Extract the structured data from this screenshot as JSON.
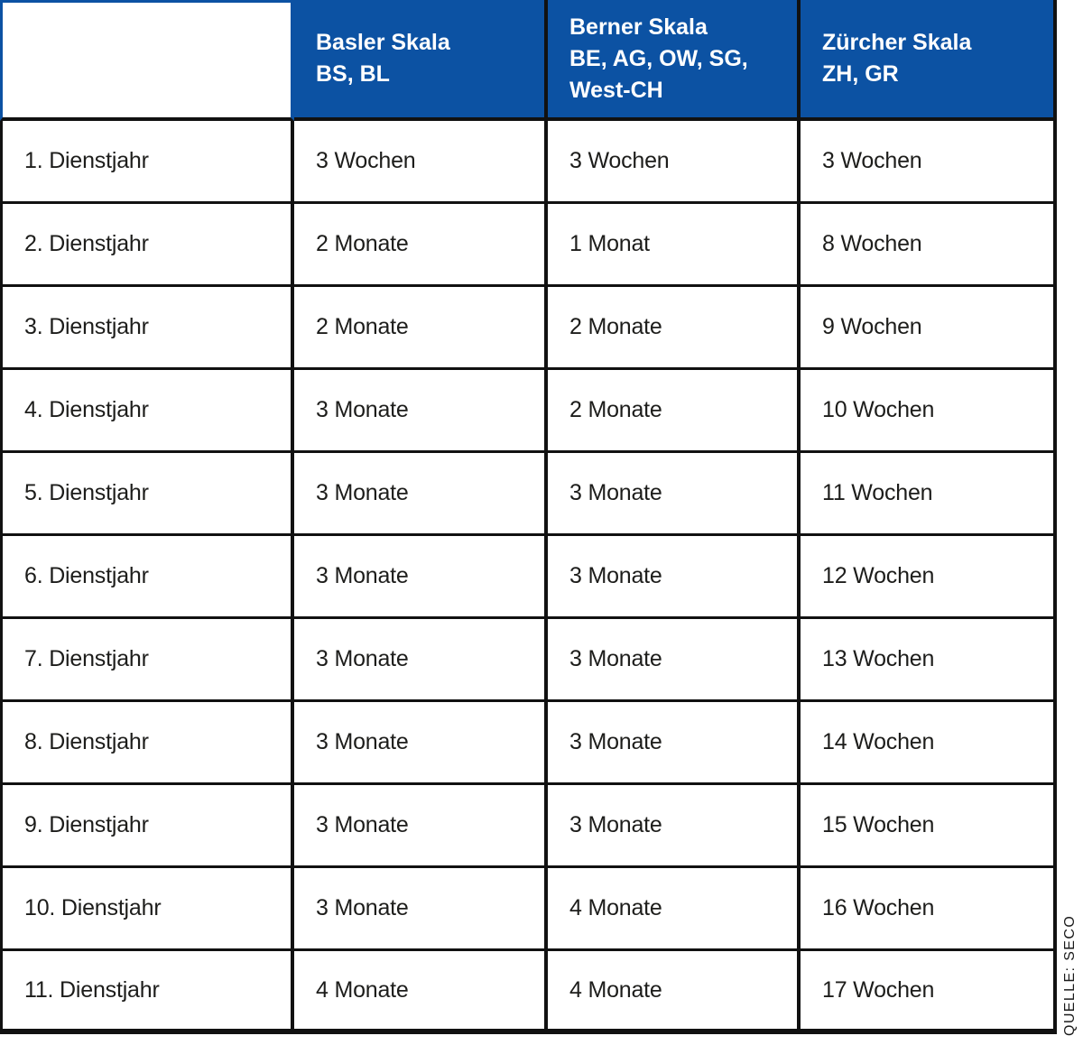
{
  "chart_data": {
    "type": "table",
    "columns": [
      {
        "lines": []
      },
      {
        "lines": [
          "Basler Skala",
          "BS, BL"
        ]
      },
      {
        "lines": [
          "Berner Skala",
          "BE, AG, OW, SG,",
          "West-CH"
        ]
      },
      {
        "lines": [
          "Zürcher Skala",
          "ZH, GR"
        ]
      }
    ],
    "rows": [
      [
        "1. Dienstjahr",
        "3 Wochen",
        "3 Wochen",
        "3 Wochen"
      ],
      [
        "2. Dienstjahr",
        "2 Monate",
        "1 Monat",
        "8 Wochen"
      ],
      [
        "3. Dienstjahr",
        "2 Monate",
        "2 Monate",
        "9 Wochen"
      ],
      [
        "4. Dienstjahr",
        "3 Monate",
        "2 Monate",
        "10 Wochen"
      ],
      [
        "5. Dienstjahr",
        "3 Monate",
        "3 Monate",
        "11 Wochen"
      ],
      [
        "6. Dienstjahr",
        "3 Monate",
        "3 Monate",
        "12 Wochen"
      ],
      [
        "7. Dienstjahr",
        "3 Monate",
        "3 Monate",
        "13 Wochen"
      ],
      [
        "8. Dienstjahr",
        "3 Monate",
        "3 Monate",
        "14 Wochen"
      ],
      [
        "9. Dienstjahr",
        "3 Monate",
        "3 Monate",
        "15 Wochen"
      ],
      [
        "10. Dienstjahr",
        "3 Monate",
        "4 Monate",
        "16 Wochen"
      ],
      [
        "11. Dienstjahr",
        "4 Monate",
        "4 Monate",
        "17 Wochen"
      ]
    ]
  },
  "source_label": "QUELLE: SECO",
  "colors": {
    "header_blue": "#0c52a3",
    "border_black": "#111111",
    "body_text": "#1d1d1b",
    "header_text": "#ffffff"
  }
}
